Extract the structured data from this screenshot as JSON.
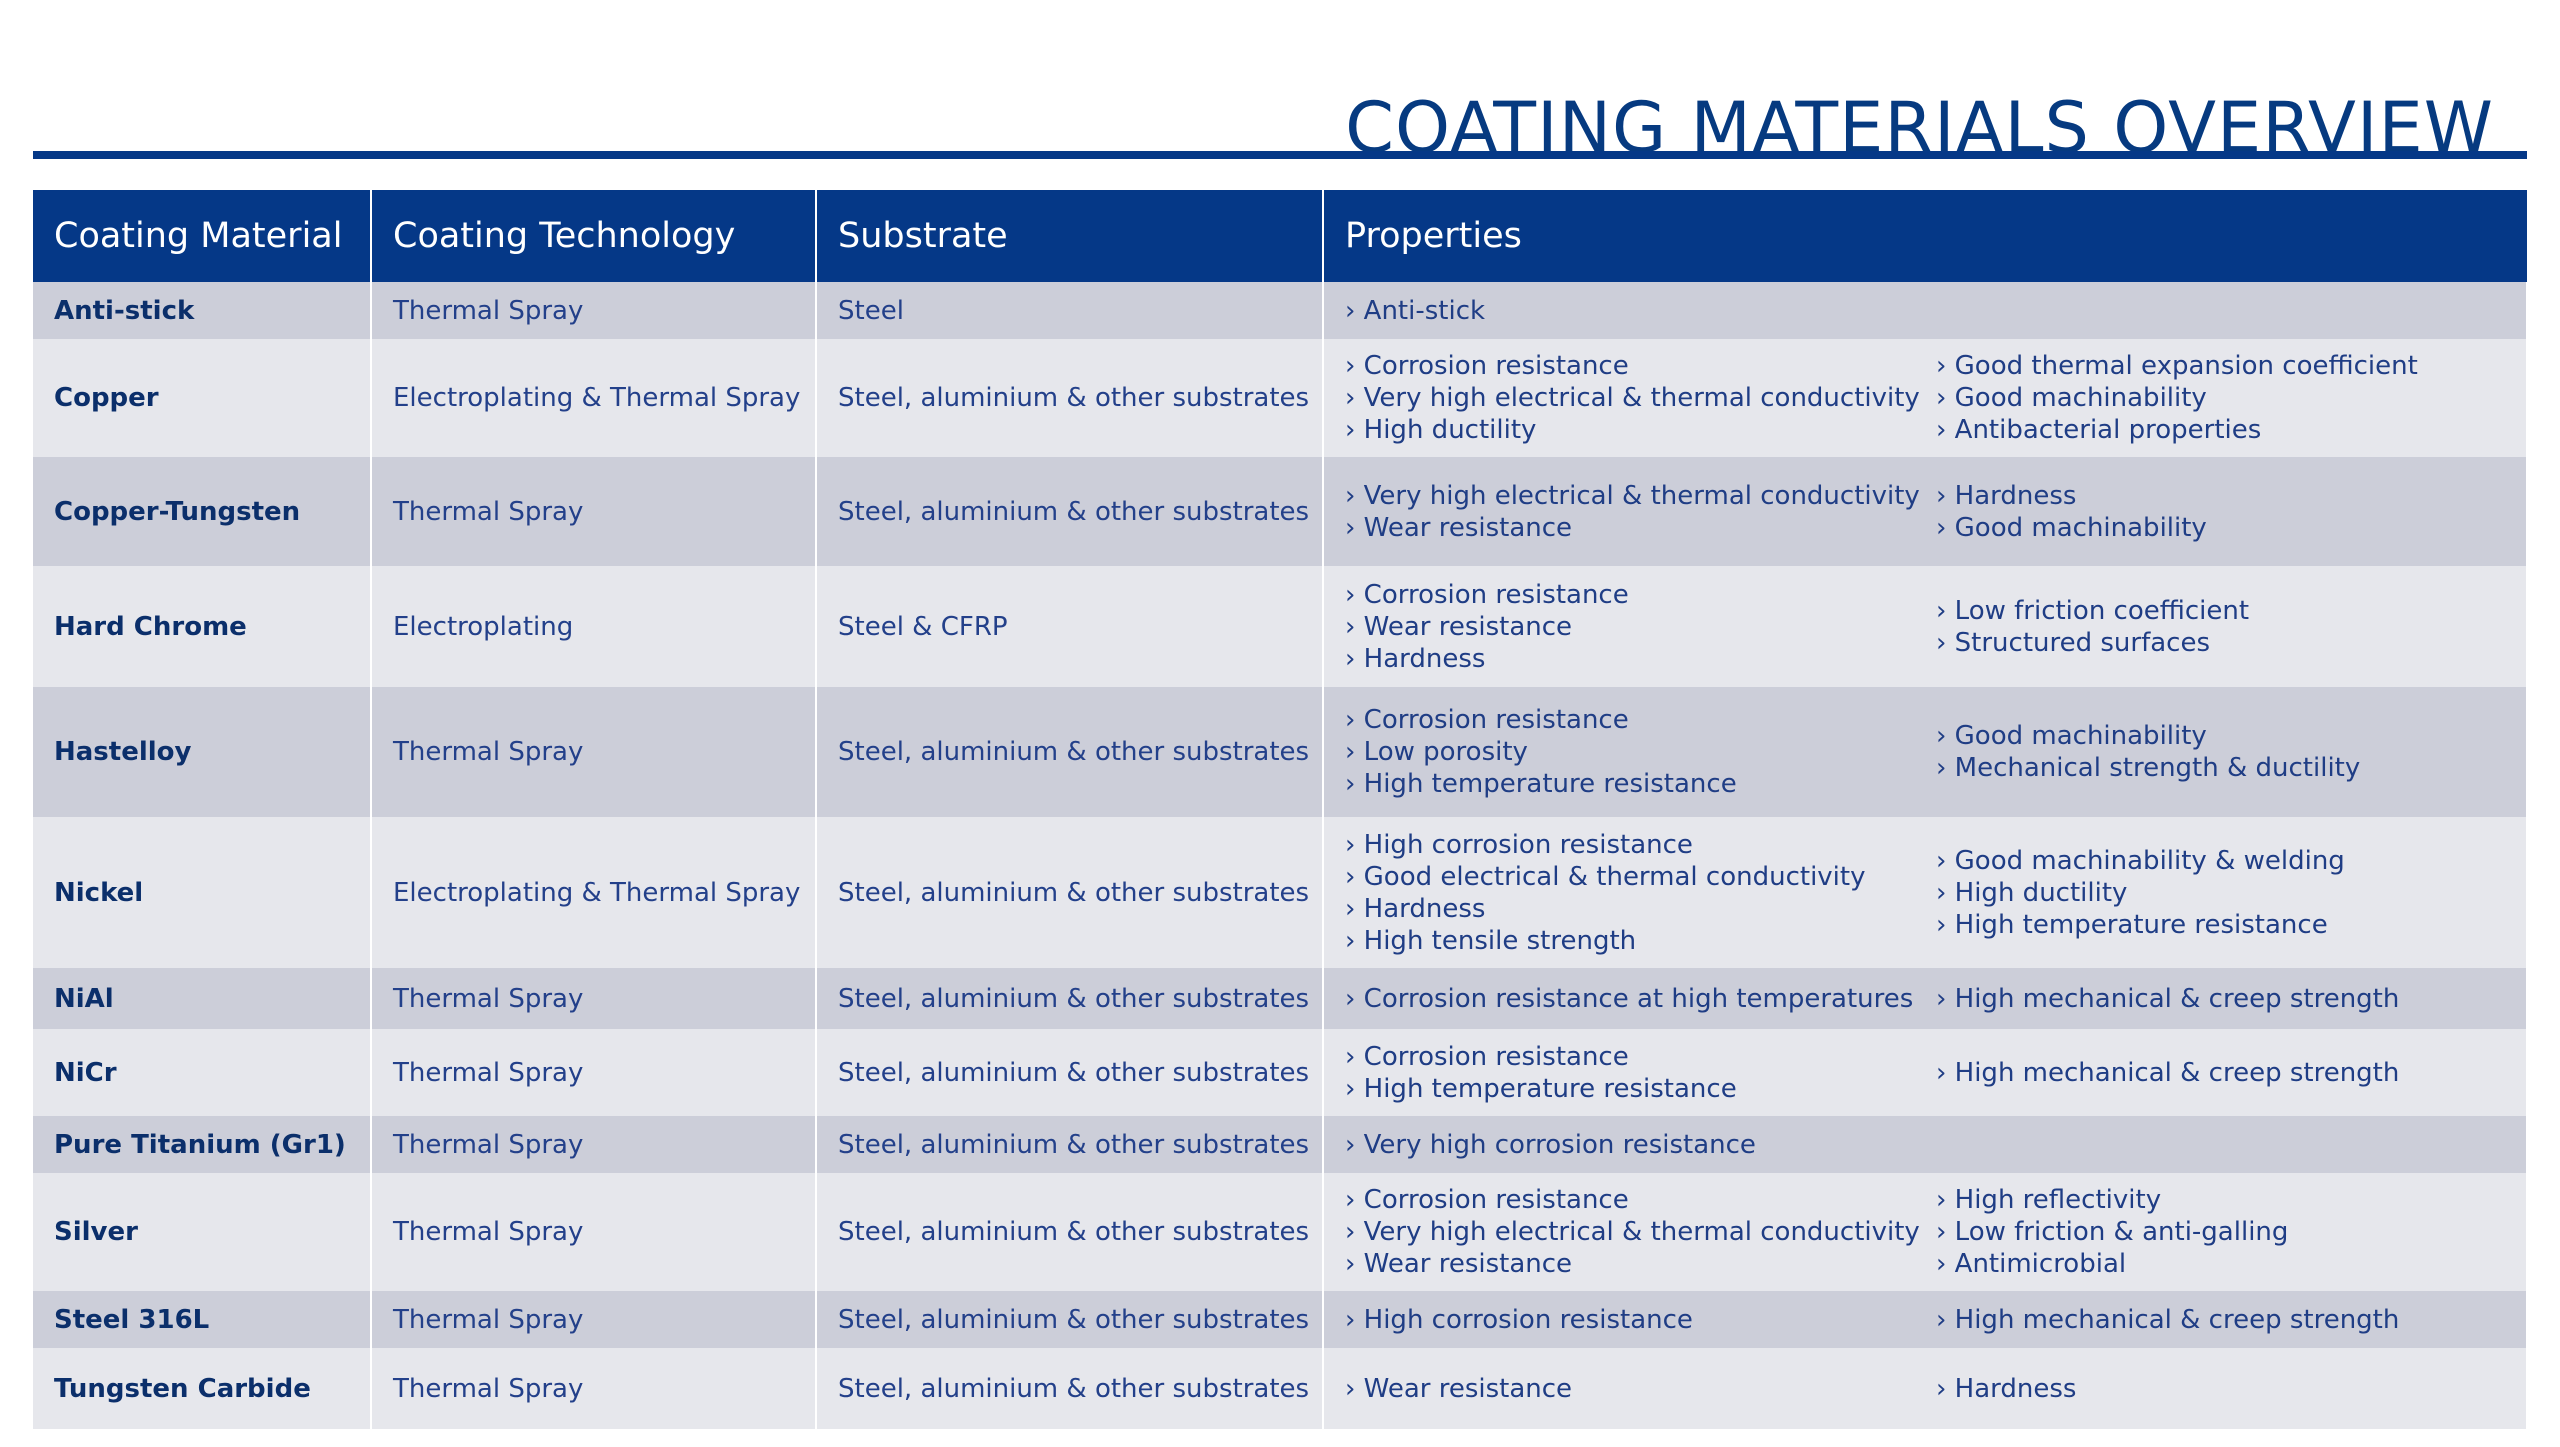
{
  "page": {
    "title": "COATING MATERIALS OVERVIEW"
  },
  "table": {
    "headers": {
      "material": "Coating Material",
      "technology": "Coating Technology",
      "substrate": "Substrate",
      "properties": "Properties"
    },
    "rows": [
      {
        "material": "Anti-stick",
        "technology": "Thermal Spray",
        "substrate": "Steel",
        "props_a": [
          "› Anti-stick"
        ],
        "props_b": []
      },
      {
        "material": "Copper",
        "technology": "Electroplating & Thermal Spray",
        "substrate": "Steel, aluminium & other substrates",
        "props_a": [
          "› Corrosion resistance",
          "› Very high electrical & thermal conductivity",
          "› High ductility"
        ],
        "props_b": [
          "› Good thermal expansion coefficient",
          "› Good machinability",
          "› Antibacterial properties"
        ]
      },
      {
        "material": "Copper-Tungsten",
        "technology": "Thermal Spray",
        "substrate": "Steel, aluminium & other substrates",
        "props_a": [
          "› Very high electrical & thermal conductivity",
          "› Wear resistance"
        ],
        "props_b": [
          "› Hardness",
          "› Good machinability"
        ]
      },
      {
        "material": "Hard Chrome",
        "technology": "Electroplating",
        "substrate": "Steel & CFRP",
        "props_a": [
          "› Corrosion resistance",
          "› Wear resistance",
          "› Hardness"
        ],
        "props_b": [
          "› Low friction coefficient",
          "› Structured surfaces"
        ]
      },
      {
        "material": "Hastelloy",
        "technology": "Thermal Spray",
        "substrate": "Steel, aluminium & other substrates",
        "props_a": [
          "› Corrosion resistance",
          "› Low porosity",
          "› High temperature resistance"
        ],
        "props_b": [
          "› Good machinability",
          "› Mechanical strength & ductility"
        ]
      },
      {
        "material": "Nickel",
        "technology": "Electroplating & Thermal Spray",
        "substrate": "Steel, aluminium & other substrates",
        "props_a": [
          "› High corrosion resistance",
          "› Good electrical & thermal conductivity",
          "› Hardness",
          "› High tensile strength"
        ],
        "props_b": [
          "› Good machinability & welding",
          "› High ductility",
          "› High temperature resistance"
        ]
      },
      {
        "material": "NiAl",
        "technology": "Thermal Spray",
        "substrate": "Steel, aluminium & other substrates",
        "props_a": [
          "› Corrosion resistance at high temperatures"
        ],
        "props_b": [
          "› High mechanical & creep strength"
        ]
      },
      {
        "material": "NiCr",
        "technology": "Thermal Spray",
        "substrate": "Steel, aluminium & other substrates",
        "props_a": [
          "› Corrosion resistance",
          "› High temperature resistance"
        ],
        "props_b": [
          "› High mechanical & creep strength"
        ]
      },
      {
        "material": "Pure Titanium (Gr1)",
        "technology": "Thermal Spray",
        "substrate": "Steel, aluminium & other substrates",
        "props_a": [
          "› Very high corrosion resistance"
        ],
        "props_b": []
      },
      {
        "material": "Silver",
        "technology": "Thermal Spray",
        "substrate": "Steel, aluminium & other substrates",
        "props_a": [
          "› Corrosion resistance",
          "› Very high electrical & thermal conductivity",
          "› Wear resistance"
        ],
        "props_b": [
          "› High reflectivity",
          "› Low friction & anti-galling",
          "› Antimicrobial"
        ]
      },
      {
        "material": "Steel 316L",
        "technology": "Thermal Spray",
        "substrate": "Steel, aluminium & other substrates",
        "props_a": [
          "› High corrosion resistance"
        ],
        "props_b": [
          "› High mechanical & creep strength"
        ]
      },
      {
        "material": "Tungsten Carbide",
        "technology": "Thermal Spray",
        "substrate": "Steel, aluminium & other substrates",
        "props_a": [
          "› Wear resistance"
        ],
        "props_b": [
          "› Hardness"
        ]
      }
    ]
  },
  "colors": {
    "header_bg": "#053887",
    "row_shade": "#ccced9",
    "row_light": "#e6e7ec",
    "text": "#1f3d85"
  }
}
